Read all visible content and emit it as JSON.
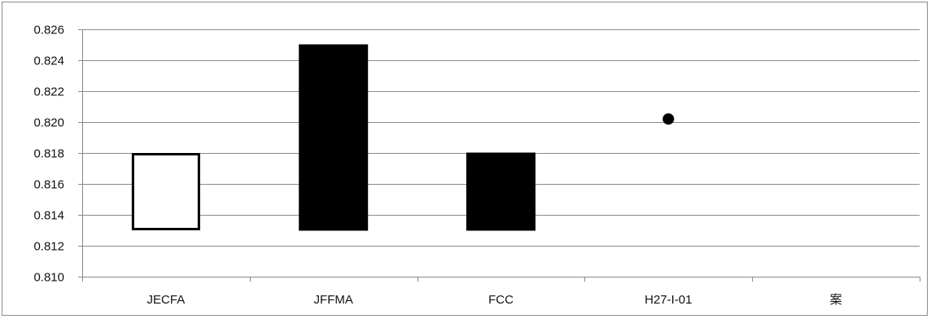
{
  "chart_data": {
    "type": "bar",
    "title": "",
    "xlabel": "",
    "ylabel": "",
    "ylim": [
      0.81,
      0.826
    ],
    "y_ticks": [
      "0.810",
      "0.812",
      "0.814",
      "0.816",
      "0.818",
      "0.820",
      "0.822",
      "0.824",
      "0.826"
    ],
    "grid": true,
    "categories": [
      "JECFA",
      "JFFMA",
      "FCC",
      "H27-I-01",
      "案"
    ],
    "series": [
      {
        "style": "floating-range-bar",
        "ranges": [
          {
            "category": "JECFA",
            "low": 0.813,
            "high": 0.818,
            "fill": "#ffffff"
          },
          {
            "category": "JFFMA",
            "low": 0.813,
            "high": 0.825,
            "fill": "#000000"
          },
          {
            "category": "FCC",
            "low": 0.813,
            "high": 0.818,
            "fill": "#000000"
          }
        ]
      },
      {
        "style": "point",
        "points": [
          {
            "category": "H27-I-01",
            "value": 0.8202,
            "color": "#000000"
          }
        ]
      }
    ]
  }
}
